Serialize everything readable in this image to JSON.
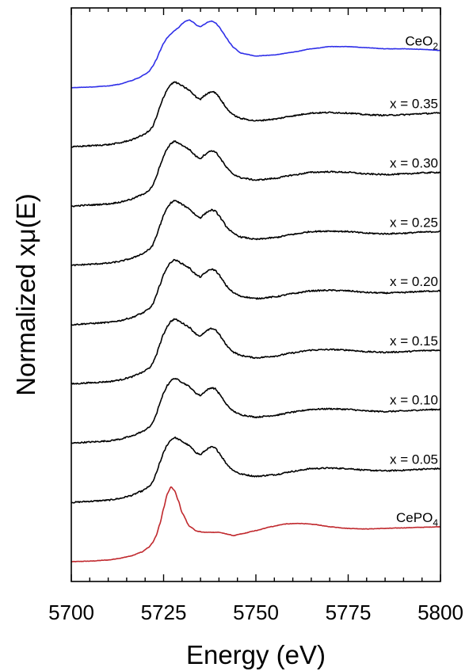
{
  "chart_data": {
    "type": "line",
    "xlabel": "Energy (eV)",
    "ylabel": "Normalized xμ(E)",
    "xlim": [
      5700,
      5800
    ],
    "x_ticks": [
      5700,
      5725,
      5750,
      5775,
      5800
    ],
    "y_ticks_shown": false,
    "grid": false,
    "legend": "none",
    "label_placement": "right-end-of-curves",
    "offset_step": 1,
    "series": [
      {
        "id": "cepo4",
        "label_main": "CePO",
        "label_sub": "4",
        "color": "#c0282d",
        "offset": 0,
        "preedge": "cepo4",
        "noise": 0.004,
        "x": [
          5700,
          5705,
          5710,
          5713,
          5716,
          5719,
          5721,
          5722,
          5723,
          5724,
          5725,
          5726,
          5727,
          5728,
          5729,
          5730,
          5732,
          5734,
          5736,
          5738,
          5740,
          5742,
          5744,
          5746,
          5750,
          5754,
          5758,
          5762,
          5766,
          5770,
          5775,
          5780,
          5785,
          5790,
          5795,
          5800
        ],
        "y": [
          0.0,
          0.01,
          0.03,
          0.06,
          0.1,
          0.17,
          0.26,
          0.34,
          0.47,
          0.68,
          0.96,
          1.22,
          1.35,
          1.28,
          1.1,
          0.88,
          0.64,
          0.55,
          0.53,
          0.53,
          0.53,
          0.5,
          0.47,
          0.5,
          0.56,
          0.63,
          0.68,
          0.69,
          0.67,
          0.63,
          0.6,
          0.59,
          0.6,
          0.61,
          0.62,
          0.63
        ]
      },
      {
        "id": "x005",
        "label_main": "x = 0.05",
        "label_sub": "",
        "color": "#000000",
        "offset": 1,
        "noise": 0.012,
        "x": [
          5700,
          5705,
          5710,
          5713,
          5716,
          5719,
          5721,
          5722,
          5723,
          5724,
          5725,
          5726,
          5727,
          5728,
          5729,
          5730,
          5731,
          5732,
          5733,
          5734,
          5735,
          5736,
          5737,
          5738,
          5739,
          5740,
          5741,
          5742,
          5743,
          5744,
          5746,
          5750,
          5755,
          5760,
          5765,
          5770,
          5775,
          5780,
          5785,
          5790,
          5795,
          5800
        ],
        "y": [
          0.0,
          0.02,
          0.04,
          0.07,
          0.12,
          0.2,
          0.28,
          0.36,
          0.52,
          0.72,
          0.9,
          1.04,
          1.13,
          1.17,
          1.14,
          1.1,
          1.06,
          1.02,
          0.95,
          0.89,
          0.86,
          0.92,
          0.97,
          1.0,
          0.98,
          0.9,
          0.8,
          0.7,
          0.63,
          0.57,
          0.51,
          0.47,
          0.5,
          0.56,
          0.61,
          0.62,
          0.61,
          0.58,
          0.57,
          0.58,
          0.6,
          0.61
        ]
      },
      {
        "id": "x010",
        "label_main": "x = 0.10",
        "label_sub": "",
        "color": "#000000",
        "offset": 2,
        "noise": 0.012,
        "x": [
          5700,
          5705,
          5710,
          5713,
          5716,
          5719,
          5721,
          5722,
          5723,
          5724,
          5725,
          5726,
          5727,
          5728,
          5729,
          5730,
          5731,
          5732,
          5733,
          5734,
          5735,
          5736,
          5737,
          5738,
          5739,
          5740,
          5741,
          5742,
          5743,
          5744,
          5746,
          5750,
          5755,
          5760,
          5765,
          5770,
          5775,
          5780,
          5785,
          5790,
          5795,
          5800
        ],
        "y": [
          0.0,
          0.02,
          0.04,
          0.07,
          0.12,
          0.2,
          0.28,
          0.36,
          0.52,
          0.72,
          0.9,
          1.04,
          1.13,
          1.17,
          1.14,
          1.1,
          1.06,
          1.02,
          0.95,
          0.89,
          0.86,
          0.92,
          0.97,
          1.0,
          0.98,
          0.9,
          0.8,
          0.7,
          0.63,
          0.57,
          0.51,
          0.47,
          0.5,
          0.56,
          0.61,
          0.62,
          0.61,
          0.58,
          0.57,
          0.58,
          0.6,
          0.61
        ]
      },
      {
        "id": "x015",
        "label_main": "x = 0.15",
        "label_sub": "",
        "color": "#000000",
        "offset": 3,
        "noise": 0.012,
        "x": [
          5700,
          5705,
          5710,
          5713,
          5716,
          5719,
          5721,
          5722,
          5723,
          5724,
          5725,
          5726,
          5727,
          5728,
          5729,
          5730,
          5731,
          5732,
          5733,
          5734,
          5735,
          5736,
          5737,
          5738,
          5739,
          5740,
          5741,
          5742,
          5743,
          5744,
          5746,
          5750,
          5755,
          5760,
          5765,
          5770,
          5775,
          5780,
          5785,
          5790,
          5795,
          5800
        ],
        "y": [
          0.0,
          0.02,
          0.04,
          0.07,
          0.12,
          0.2,
          0.28,
          0.36,
          0.52,
          0.72,
          0.9,
          1.04,
          1.13,
          1.17,
          1.14,
          1.1,
          1.06,
          1.02,
          0.95,
          0.89,
          0.86,
          0.92,
          0.97,
          1.0,
          0.98,
          0.9,
          0.8,
          0.7,
          0.63,
          0.57,
          0.51,
          0.47,
          0.5,
          0.56,
          0.61,
          0.62,
          0.61,
          0.58,
          0.57,
          0.58,
          0.6,
          0.61
        ]
      },
      {
        "id": "x020",
        "label_main": "x = 0.20",
        "label_sub": "",
        "color": "#000000",
        "offset": 4,
        "noise": 0.012,
        "x": [
          5700,
          5705,
          5710,
          5713,
          5716,
          5719,
          5721,
          5722,
          5723,
          5724,
          5725,
          5726,
          5727,
          5728,
          5729,
          5730,
          5731,
          5732,
          5733,
          5734,
          5735,
          5736,
          5737,
          5738,
          5739,
          5740,
          5741,
          5742,
          5743,
          5744,
          5746,
          5750,
          5755,
          5760,
          5765,
          5770,
          5775,
          5780,
          5785,
          5790,
          5795,
          5800
        ],
        "y": [
          0.0,
          0.02,
          0.04,
          0.07,
          0.12,
          0.2,
          0.28,
          0.36,
          0.52,
          0.72,
          0.9,
          1.04,
          1.13,
          1.17,
          1.14,
          1.1,
          1.06,
          1.02,
          0.95,
          0.89,
          0.86,
          0.92,
          0.97,
          1.0,
          0.98,
          0.9,
          0.8,
          0.7,
          0.63,
          0.57,
          0.51,
          0.47,
          0.5,
          0.56,
          0.61,
          0.62,
          0.61,
          0.58,
          0.57,
          0.58,
          0.6,
          0.61
        ]
      },
      {
        "id": "x025",
        "label_main": "x = 0.25",
        "label_sub": "",
        "color": "#000000",
        "offset": 5,
        "noise": 0.012,
        "x": [
          5700,
          5705,
          5710,
          5713,
          5716,
          5719,
          5721,
          5722,
          5723,
          5724,
          5725,
          5726,
          5727,
          5728,
          5729,
          5730,
          5731,
          5732,
          5733,
          5734,
          5735,
          5736,
          5737,
          5738,
          5739,
          5740,
          5741,
          5742,
          5743,
          5744,
          5746,
          5750,
          5755,
          5760,
          5765,
          5770,
          5775,
          5780,
          5785,
          5790,
          5795,
          5800
        ],
        "y": [
          0.0,
          0.02,
          0.04,
          0.07,
          0.12,
          0.2,
          0.28,
          0.36,
          0.52,
          0.72,
          0.9,
          1.04,
          1.13,
          1.17,
          1.14,
          1.1,
          1.06,
          1.02,
          0.95,
          0.89,
          0.86,
          0.92,
          0.97,
          1.0,
          0.98,
          0.9,
          0.8,
          0.7,
          0.63,
          0.57,
          0.51,
          0.47,
          0.5,
          0.56,
          0.61,
          0.62,
          0.61,
          0.58,
          0.57,
          0.58,
          0.6,
          0.61
        ]
      },
      {
        "id": "x030",
        "label_main": "x = 0.30",
        "label_sub": "",
        "color": "#000000",
        "offset": 6,
        "noise": 0.012,
        "x": [
          5700,
          5705,
          5710,
          5713,
          5716,
          5719,
          5721,
          5722,
          5723,
          5724,
          5725,
          5726,
          5727,
          5728,
          5729,
          5730,
          5731,
          5732,
          5733,
          5734,
          5735,
          5736,
          5737,
          5738,
          5739,
          5740,
          5741,
          5742,
          5743,
          5744,
          5746,
          5750,
          5755,
          5760,
          5765,
          5770,
          5775,
          5780,
          5785,
          5790,
          5795,
          5800
        ],
        "y": [
          0.0,
          0.02,
          0.04,
          0.07,
          0.12,
          0.2,
          0.28,
          0.36,
          0.52,
          0.72,
          0.9,
          1.04,
          1.13,
          1.17,
          1.14,
          1.1,
          1.06,
          1.02,
          0.95,
          0.89,
          0.86,
          0.92,
          0.97,
          1.0,
          0.98,
          0.9,
          0.8,
          0.7,
          0.63,
          0.57,
          0.51,
          0.47,
          0.5,
          0.56,
          0.61,
          0.62,
          0.61,
          0.58,
          0.57,
          0.58,
          0.6,
          0.61
        ]
      },
      {
        "id": "x035",
        "label_main": "x = 0.35",
        "label_sub": "",
        "color": "#000000",
        "offset": 7,
        "noise": 0.012,
        "x": [
          5700,
          5705,
          5710,
          5713,
          5716,
          5719,
          5721,
          5722,
          5723,
          5724,
          5725,
          5726,
          5727,
          5728,
          5729,
          5730,
          5731,
          5732,
          5733,
          5734,
          5735,
          5736,
          5737,
          5738,
          5739,
          5740,
          5741,
          5742,
          5743,
          5744,
          5746,
          5750,
          5755,
          5760,
          5765,
          5770,
          5775,
          5780,
          5785,
          5790,
          5795,
          5800
        ],
        "y": [
          0.0,
          0.02,
          0.04,
          0.07,
          0.12,
          0.2,
          0.28,
          0.36,
          0.52,
          0.72,
          0.9,
          1.04,
          1.13,
          1.17,
          1.14,
          1.1,
          1.06,
          1.02,
          0.95,
          0.89,
          0.86,
          0.92,
          0.97,
          1.0,
          0.98,
          0.9,
          0.8,
          0.7,
          0.63,
          0.57,
          0.51,
          0.47,
          0.5,
          0.56,
          0.61,
          0.62,
          0.61,
          0.58,
          0.57,
          0.58,
          0.6,
          0.61
        ]
      },
      {
        "id": "ceo2",
        "label_main": "CeO",
        "label_sub": "2",
        "color": "#2f2fe8",
        "offset": 8,
        "noise": 0.003,
        "x": [
          5700,
          5705,
          5710,
          5713,
          5716,
          5718,
          5720,
          5721,
          5722,
          5723,
          5724,
          5725,
          5726,
          5727,
          5728,
          5729,
          5730,
          5731,
          5732,
          5733,
          5734,
          5735,
          5736,
          5737,
          5738,
          5739,
          5740,
          5741,
          5742,
          5743,
          5744,
          5746,
          5750,
          5755,
          5760,
          5765,
          5770,
          5775,
          5780,
          5785,
          5790,
          5795,
          5800
        ],
        "y": [
          0.0,
          0.01,
          0.03,
          0.06,
          0.12,
          0.17,
          0.24,
          0.29,
          0.38,
          0.5,
          0.66,
          0.8,
          0.9,
          0.97,
          1.03,
          1.08,
          1.15,
          1.2,
          1.22,
          1.18,
          1.12,
          1.1,
          1.14,
          1.18,
          1.2,
          1.17,
          1.1,
          1.0,
          0.9,
          0.8,
          0.72,
          0.62,
          0.57,
          0.59,
          0.64,
          0.7,
          0.74,
          0.74,
          0.72,
          0.7,
          0.7,
          0.69,
          0.67
        ]
      }
    ]
  }
}
